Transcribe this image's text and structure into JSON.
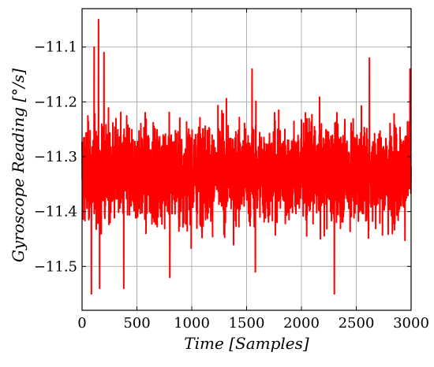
{
  "chart_data": {
    "type": "line",
    "title": "",
    "xlabel": "Time [Samples]",
    "ylabel": "Gyroscope Reading [°/s]",
    "xlim": [
      0,
      3000
    ],
    "ylim": [
      -11.58,
      -11.03
    ],
    "x_ticks": [
      0,
      500,
      1000,
      1500,
      2000,
      2500,
      3000
    ],
    "x_tick_labels": [
      "0",
      "500",
      "1000",
      "1500",
      "2000",
      "2500",
      "3000"
    ],
    "y_ticks": [
      -11.5,
      -11.4,
      -11.3,
      -11.2,
      -11.1
    ],
    "y_tick_labels": [
      "−11.5",
      "−11.4",
      "−11.3",
      "−11.2",
      "−11.1"
    ],
    "grid": true,
    "series": [
      {
        "color": "#ff0000",
        "x_start": 0,
        "x_step": 1,
        "num_points": 3000,
        "mean": -11.33,
        "typical_range": [
          -11.45,
          -11.22
        ],
        "notable_points": [
          {
            "x": 85,
            "y": -11.55
          },
          {
            "x": 110,
            "y": -11.1
          },
          {
            "x": 150,
            "y": -11.05
          },
          {
            "x": 160,
            "y": -11.54
          },
          {
            "x": 200,
            "y": -11.11
          },
          {
            "x": 380,
            "y": -11.54
          },
          {
            "x": 800,
            "y": -11.52
          },
          {
            "x": 1550,
            "y": -11.14
          },
          {
            "x": 1580,
            "y": -11.51
          },
          {
            "x": 2300,
            "y": -11.55
          },
          {
            "x": 2620,
            "y": -11.12
          },
          {
            "x": 2990,
            "y": -11.14
          }
        ]
      }
    ]
  }
}
